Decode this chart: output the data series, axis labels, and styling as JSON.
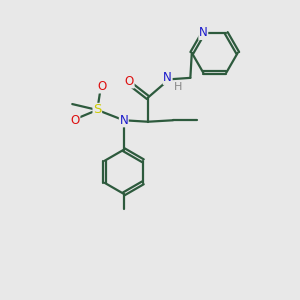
{
  "bg_color": "#e8e8e8",
  "bond_color": "#2d5a3d",
  "N_color": "#1a1acc",
  "O_color": "#dd1111",
  "S_color": "#cccc00",
  "H_color": "#888888",
  "fig_size": [
    3.0,
    3.0
  ],
  "dpi": 100,
  "xlim": [
    0,
    10
  ],
  "ylim": [
    0,
    10
  ]
}
